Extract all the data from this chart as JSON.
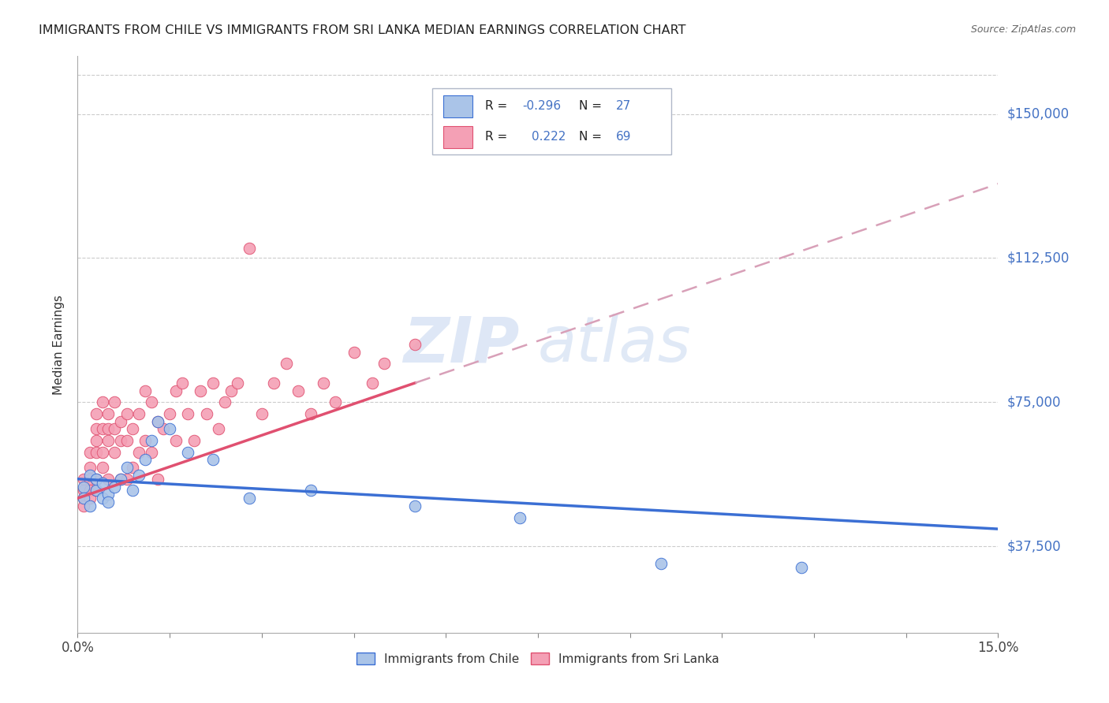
{
  "title": "IMMIGRANTS FROM CHILE VS IMMIGRANTS FROM SRI LANKA MEDIAN EARNINGS CORRELATION CHART",
  "source": "Source: ZipAtlas.com",
  "ylabel": "Median Earnings",
  "ytick_labels": [
    "$37,500",
    "$75,000",
    "$112,500",
    "$150,000"
  ],
  "ytick_values": [
    37500,
    75000,
    112500,
    150000
  ],
  "ymin": 15000,
  "ymax": 165000,
  "xmin": 0.0,
  "xmax": 0.15,
  "chile_color": "#aac4e8",
  "srilanka_color": "#f4a0b5",
  "chile_line_color": "#3b6fd4",
  "srilanka_line_color": "#e05070",
  "srilanka_dash_color": "#d8a0b8",
  "legend_chile_label": "Immigrants from Chile",
  "legend_srilanka_label": "Immigrants from Sri Lanka",
  "watermark_zip": "ZIP",
  "watermark_atlas": "atlas",
  "chile_x": [
    0.001,
    0.001,
    0.002,
    0.002,
    0.003,
    0.003,
    0.004,
    0.004,
    0.005,
    0.005,
    0.006,
    0.007,
    0.008,
    0.009,
    0.01,
    0.011,
    0.012,
    0.013,
    0.015,
    0.018,
    0.022,
    0.028,
    0.038,
    0.055,
    0.072,
    0.095,
    0.118
  ],
  "chile_y": [
    53000,
    50000,
    56000,
    48000,
    52000,
    55000,
    50000,
    54000,
    51000,
    49000,
    53000,
    55000,
    58000,
    52000,
    56000,
    60000,
    65000,
    70000,
    68000,
    62000,
    60000,
    50000,
    52000,
    48000,
    45000,
    33000,
    32000
  ],
  "srilanka_x": [
    0.001,
    0.001,
    0.001,
    0.001,
    0.002,
    0.002,
    0.002,
    0.002,
    0.002,
    0.003,
    0.003,
    0.003,
    0.003,
    0.003,
    0.003,
    0.004,
    0.004,
    0.004,
    0.004,
    0.005,
    0.005,
    0.005,
    0.005,
    0.006,
    0.006,
    0.006,
    0.007,
    0.007,
    0.007,
    0.008,
    0.008,
    0.008,
    0.009,
    0.009,
    0.01,
    0.01,
    0.011,
    0.011,
    0.012,
    0.012,
    0.013,
    0.013,
    0.014,
    0.015,
    0.016,
    0.016,
    0.017,
    0.018,
    0.019,
    0.02,
    0.021,
    0.022,
    0.023,
    0.024,
    0.025,
    0.026,
    0.028,
    0.03,
    0.032,
    0.034,
    0.036,
    0.038,
    0.04,
    0.042,
    0.045,
    0.048,
    0.05,
    0.055
  ],
  "srilanka_y": [
    55000,
    52000,
    50000,
    48000,
    62000,
    58000,
    55000,
    52000,
    50000,
    72000,
    68000,
    65000,
    62000,
    55000,
    52000,
    75000,
    68000,
    62000,
    58000,
    72000,
    68000,
    65000,
    55000,
    75000,
    68000,
    62000,
    70000,
    65000,
    55000,
    72000,
    65000,
    55000,
    68000,
    58000,
    72000,
    62000,
    78000,
    65000,
    75000,
    62000,
    70000,
    55000,
    68000,
    72000,
    78000,
    65000,
    80000,
    72000,
    65000,
    78000,
    72000,
    80000,
    68000,
    75000,
    78000,
    80000,
    115000,
    72000,
    80000,
    85000,
    78000,
    72000,
    80000,
    75000,
    88000,
    80000,
    85000,
    90000
  ],
  "srilanka_outlier_x": [
    0.028
  ],
  "srilanka_outlier_y": [
    115000
  ]
}
